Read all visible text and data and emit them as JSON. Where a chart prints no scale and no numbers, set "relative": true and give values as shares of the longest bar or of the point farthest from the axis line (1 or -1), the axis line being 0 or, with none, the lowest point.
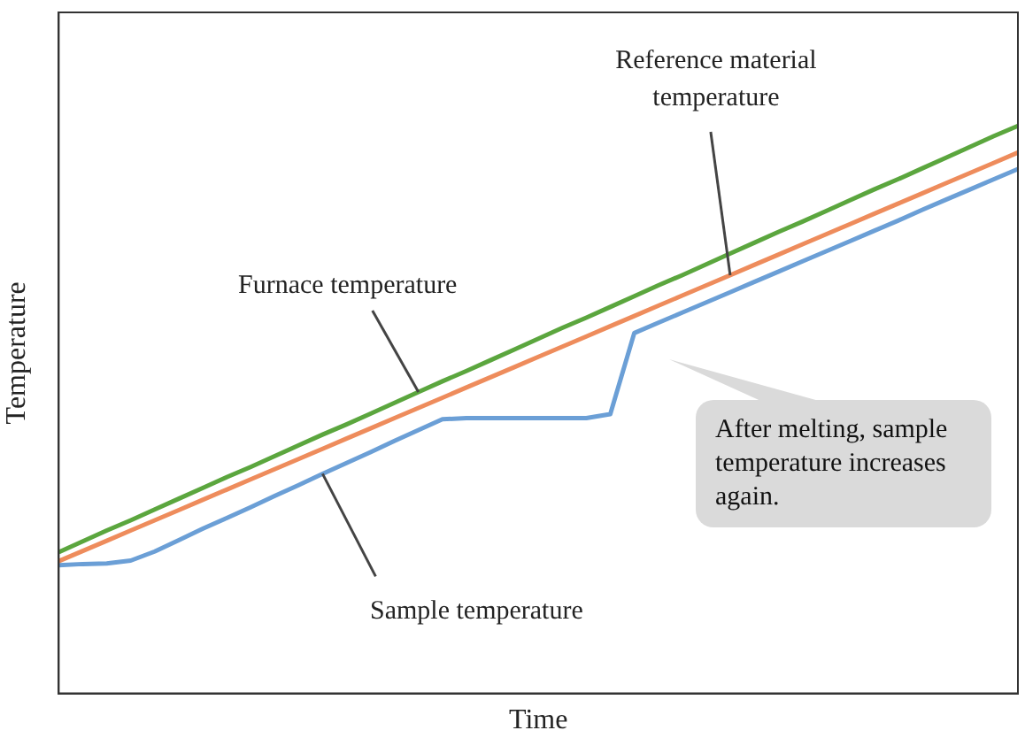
{
  "chart_data": {
    "type": "line",
    "relative": true,
    "xlabel": "Time",
    "ylabel": "Temperature",
    "categories": [
      null,
      null,
      null,
      null,
      null,
      null,
      null,
      null,
      null,
      null,
      null,
      null,
      null,
      null,
      null,
      null,
      null,
      null,
      null,
      null,
      null,
      null,
      null,
      null,
      null,
      null,
      null,
      null,
      null,
      null,
      null,
      null,
      null,
      null,
      null,
      null,
      null,
      null,
      null,
      null,
      null
    ],
    "series": [
      {
        "name": "Furnace temperature",
        "color": "#5ba63e",
        "values": [
          0.249,
          0.268,
          0.287,
          0.305,
          0.324,
          0.343,
          0.362,
          0.381,
          0.399,
          0.418,
          0.437,
          0.456,
          0.474,
          0.493,
          0.512,
          0.531,
          0.55,
          0.568,
          0.587,
          0.606,
          0.625,
          0.644,
          0.662,
          0.681,
          0.7,
          0.719,
          0.737,
          0.756,
          0.775,
          0.794,
          0.813,
          0.831,
          0.85,
          0.869,
          0.888,
          0.906,
          0.925,
          0.944,
          0.963,
          0.982,
          1.0
        ]
      },
      {
        "name": "Reference material temperature",
        "color": "#ee8c5c",
        "values": [
          0.233,
          0.251,
          0.269,
          0.287,
          0.305,
          0.323,
          0.341,
          0.359,
          0.377,
          0.395,
          0.413,
          0.431,
          0.449,
          0.467,
          0.485,
          0.503,
          0.521,
          0.539,
          0.557,
          0.575,
          0.593,
          0.611,
          0.629,
          0.647,
          0.665,
          0.683,
          0.701,
          0.719,
          0.737,
          0.755,
          0.773,
          0.791,
          0.809,
          0.827,
          0.845,
          0.863,
          0.881,
          0.899,
          0.917,
          0.935,
          0.953
        ]
      },
      {
        "name": "Sample temperature",
        "color": "#6b9fd6",
        "values": [
          0.226,
          0.228,
          0.229,
          0.234,
          0.25,
          0.27,
          0.29,
          0.309,
          0.328,
          0.348,
          0.367,
          0.387,
          0.406,
          0.425,
          0.445,
          0.464,
          0.483,
          0.485,
          0.485,
          0.485,
          0.485,
          0.485,
          0.485,
          0.492,
          0.635,
          0.653,
          0.671,
          0.689,
          0.707,
          0.725,
          0.743,
          0.761,
          0.779,
          0.797,
          0.815,
          0.833,
          0.852,
          0.87,
          0.888,
          0.906,
          0.924
        ]
      }
    ],
    "annotations": [
      "After melting, sample temperature increases again."
    ],
    "grid": false,
    "legend": false,
    "marker": "none",
    "line_style": "solid"
  }
}
